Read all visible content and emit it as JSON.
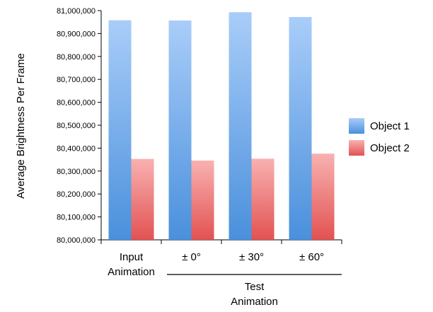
{
  "chart_data": {
    "type": "bar",
    "title": "",
    "xlabel": "",
    "ylabel": "Average Brightness Per Frame",
    "ylim": [
      80000000,
      81000000
    ],
    "yticks": [
      80000000,
      80100000,
      80200000,
      80300000,
      80400000,
      80500000,
      80600000,
      80700000,
      80800000,
      80900000,
      81000000
    ],
    "ytick_labels": [
      "80,000,000",
      "80,100,000",
      "80,200,000",
      "80,300,000",
      "80,400,000",
      "80,500,000",
      "80,600,000",
      "80,700,000",
      "80,800,000",
      "80,900,000",
      "81,000,000"
    ],
    "categories": [
      "Input Animation",
      "± 0°",
      "± 30°",
      "± 60°"
    ],
    "category_lines": [
      [
        "Input",
        "Animation"
      ],
      [
        "± 0°"
      ],
      [
        "± 30°"
      ],
      [
        "± 60°"
      ]
    ],
    "group_label_lines": [
      "Test",
      "Animation"
    ],
    "grid": false,
    "legend_position": "right",
    "series": [
      {
        "name": "Object 1",
        "values": [
          80958000,
          80957000,
          80993000,
          80972000
        ]
      },
      {
        "name": "Object 2",
        "values": [
          80353000,
          80346000,
          80354000,
          80376000
        ]
      }
    ]
  },
  "colors": {
    "object1_top": "#a9cdf9",
    "object1_bottom": "#4a90dc",
    "object2_top": "#f9b1b1",
    "object2_bottom": "#e25252",
    "axis": "#000000"
  }
}
